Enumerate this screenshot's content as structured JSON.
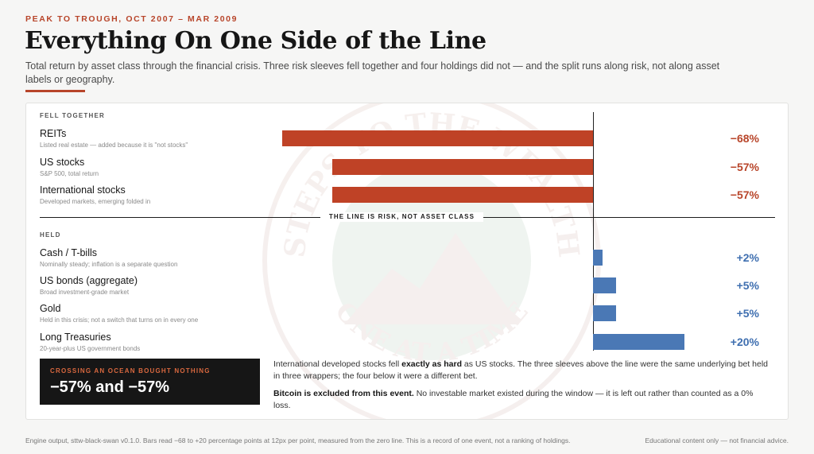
{
  "header": {
    "eyebrow": "PEAK TO TROUGH, OCT 2007 – MAR 2009",
    "title": "Everything On One Side of the Line",
    "subtitle": "Total return by asset class through the financial crisis. Three risk sleeves fell together and four holdings did not — and the split runs along risk, not along asset labels or geography."
  },
  "chart_data": {
    "type": "bar",
    "orientation": "horizontal",
    "xlim": [
      -68,
      20
    ],
    "unit": "%",
    "divider_label": "THE LINE IS RISK, NOT ASSET CLASS",
    "groups": [
      {
        "label": "FELL TOGETHER",
        "items": [
          {
            "name": "REITs",
            "note": "Listed real estate — added because it is \"not stocks\"",
            "value": -68,
            "display": "−68%"
          },
          {
            "name": "US stocks",
            "note": "S&P 500, total return",
            "value": -57,
            "display": "−57%"
          },
          {
            "name": "International stocks",
            "note": "Developed markets, emerging folded in",
            "value": -57,
            "display": "−57%"
          }
        ]
      },
      {
        "label": "HELD",
        "items": [
          {
            "name": "Cash / T-bills",
            "note": "Nominally steady; inflation is a separate question",
            "value": 2,
            "display": "+2%"
          },
          {
            "name": "US bonds (aggregate)",
            "note": "Broad investment-grade market",
            "value": 5,
            "display": "+5%"
          },
          {
            "name": "Gold",
            "note": "Held in this crisis; not a switch that turns on in every one",
            "value": 5,
            "display": "+5%"
          },
          {
            "name": "Long Treasuries",
            "note": "20-year-plus US government bonds",
            "value": 20,
            "display": "+20%"
          }
        ]
      }
    ],
    "colors": {
      "negative": "#bf4226",
      "positive": "#4a78b5"
    }
  },
  "callout": {
    "kicker": "CROSSING AN OCEAN BOUGHT NOTHING",
    "value": "−57% and −57%"
  },
  "notes": {
    "p1_a": "International developed stocks fell ",
    "p1_bold": "exactly as hard",
    "p1_b": " as US stocks. The three sleeves above the line were the same underlying bet held in three wrappers; the four below it were a different bet.",
    "p2_bold": "Bitcoin is excluded from this event.",
    "p2_b": " No investable market existed during the window — it is left out rather than counted as a 0% loss."
  },
  "footer": {
    "left": "Engine output, sttw-black-swan v0.1.0. Bars read −68 to +20 percentage points at 12px per point, measured from the zero line. This is a record of one event, not a ranking of holdings.",
    "right": "Educational content only — not financial advice."
  },
  "watermark": {
    "top_text": "STEPS TO THE WEALTH",
    "bottom_text": "ONE AT A TIME"
  }
}
